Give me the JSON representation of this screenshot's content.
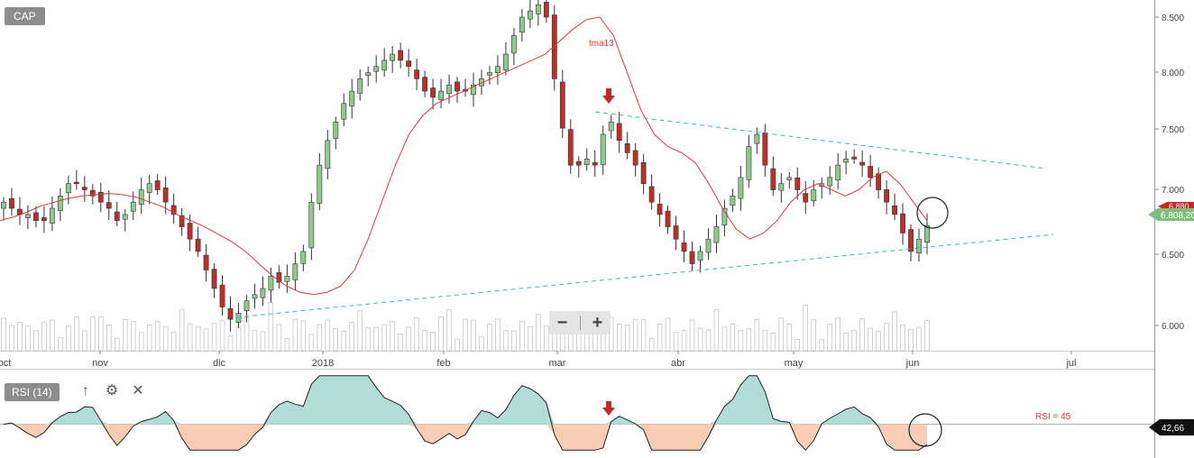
{
  "ticker": "CAP",
  "indicator": {
    "label": "RSI (14)",
    "icons": [
      "arrow-up-icon",
      "gear-icon",
      "close-icon"
    ],
    "level_label": "RSI = 45",
    "value_label": "42,66"
  },
  "zoom": {
    "minus_label": "−",
    "plus_label": "+"
  },
  "price_axis": {
    "ticks": [
      "8.500",
      "8.000",
      "7.500",
      "7.000",
      "6.500",
      "6.000"
    ],
    "current_price_label": "6.808,20",
    "prev_price_label": "6.880"
  },
  "time_axis": {
    "ticks": [
      "oct",
      "nov",
      "dic",
      "2018",
      "feb",
      "mar",
      "abr",
      "may",
      "jun",
      "jul"
    ]
  },
  "annotations": {
    "ma_label": "tma13"
  },
  "colors": {
    "bull": "#8fc98f",
    "bear": "#b8312a",
    "ma": "#d93a3a",
    "trendline": "#3fb4bf",
    "rsi_up_fill": "#b2dcd6",
    "rsi_down_fill": "#f7cdb6",
    "marker": "#c62828"
  },
  "chart_data": {
    "type": "candlestick",
    "title": "CAP",
    "x_range": [
      "2017-10-01",
      "2018-07-01"
    ],
    "y_range": [
      5.85,
      8.65
    ],
    "price_close_series": [
      7.0,
      6.95,
      6.9,
      6.9,
      6.85,
      6.85,
      6.95,
      7.05,
      7.15,
      7.15,
      7.1,
      7.05,
      7.0,
      6.95,
      6.85,
      6.9,
      7.0,
      7.1,
      7.15,
      7.1,
      7.0,
      6.9,
      6.8,
      6.7,
      6.6,
      6.45,
      6.3,
      6.15,
      6.05,
      6.1,
      6.2,
      6.25,
      6.3,
      6.4,
      6.35,
      6.4,
      6.5,
      6.6,
      7.0,
      7.3,
      7.5,
      7.65,
      7.8,
      7.9,
      8.0,
      8.05,
      8.1,
      8.15,
      8.2,
      8.15,
      8.1,
      8.0,
      7.9,
      7.85,
      7.9,
      7.95,
      7.9,
      7.9,
      7.95,
      8.0,
      8.05,
      8.1,
      8.2,
      8.35,
      8.5,
      8.55,
      8.6,
      8.5,
      8.0,
      7.6,
      7.3,
      7.3,
      7.35,
      7.3,
      7.55,
      7.65,
      7.5,
      7.4,
      7.3,
      7.15,
      7.0,
      6.9,
      6.8,
      6.7,
      6.6,
      6.5,
      6.6,
      6.7,
      6.8,
      6.95,
      7.05,
      7.2,
      7.45,
      7.55,
      7.3,
      7.1,
      7.15,
      7.2,
      7.1,
      7.0,
      7.1,
      7.15,
      7.2,
      7.3,
      7.35,
      7.35,
      7.3,
      7.2,
      7.1,
      7.0,
      6.9,
      6.75,
      6.6,
      6.7,
      6.81
    ],
    "moving_average": {
      "name": "tma13",
      "values": [
        6.85,
        6.88,
        6.92,
        6.97,
        7.0,
        7.03,
        7.05,
        7.06,
        7.07,
        7.06,
        7.04,
        7.0,
        6.96,
        6.9,
        6.85,
        6.8,
        6.74,
        6.68,
        6.6,
        6.5,
        6.4,
        6.32,
        6.27,
        6.25,
        6.27,
        6.32,
        6.45,
        6.7,
        7.0,
        7.3,
        7.55,
        7.7,
        7.8,
        7.85,
        7.9,
        7.95,
        8.0,
        8.05,
        8.1,
        8.15,
        8.2,
        8.3,
        8.4,
        8.48,
        8.5,
        8.35,
        8.05,
        7.75,
        7.55,
        7.45,
        7.4,
        7.32,
        7.15,
        6.95,
        6.78,
        6.7,
        6.75,
        6.85,
        7.0,
        7.1,
        7.15,
        7.1,
        7.05,
        7.1,
        7.2,
        7.25,
        7.15,
        7.0,
        6.85
      ]
    },
    "trendlines": [
      {
        "name": "upper",
        "from": [
          7.65,
          "2018-03-15"
        ],
        "to": [
          7.17,
          "2018-06-29"
        ]
      },
      {
        "name": "lower",
        "from": [
          6.07,
          "2017-12-01"
        ],
        "to": [
          6.65,
          "2018-06-29"
        ]
      }
    ],
    "rsi": {
      "period": 14,
      "level": 45,
      "last": 42.66
    }
  }
}
